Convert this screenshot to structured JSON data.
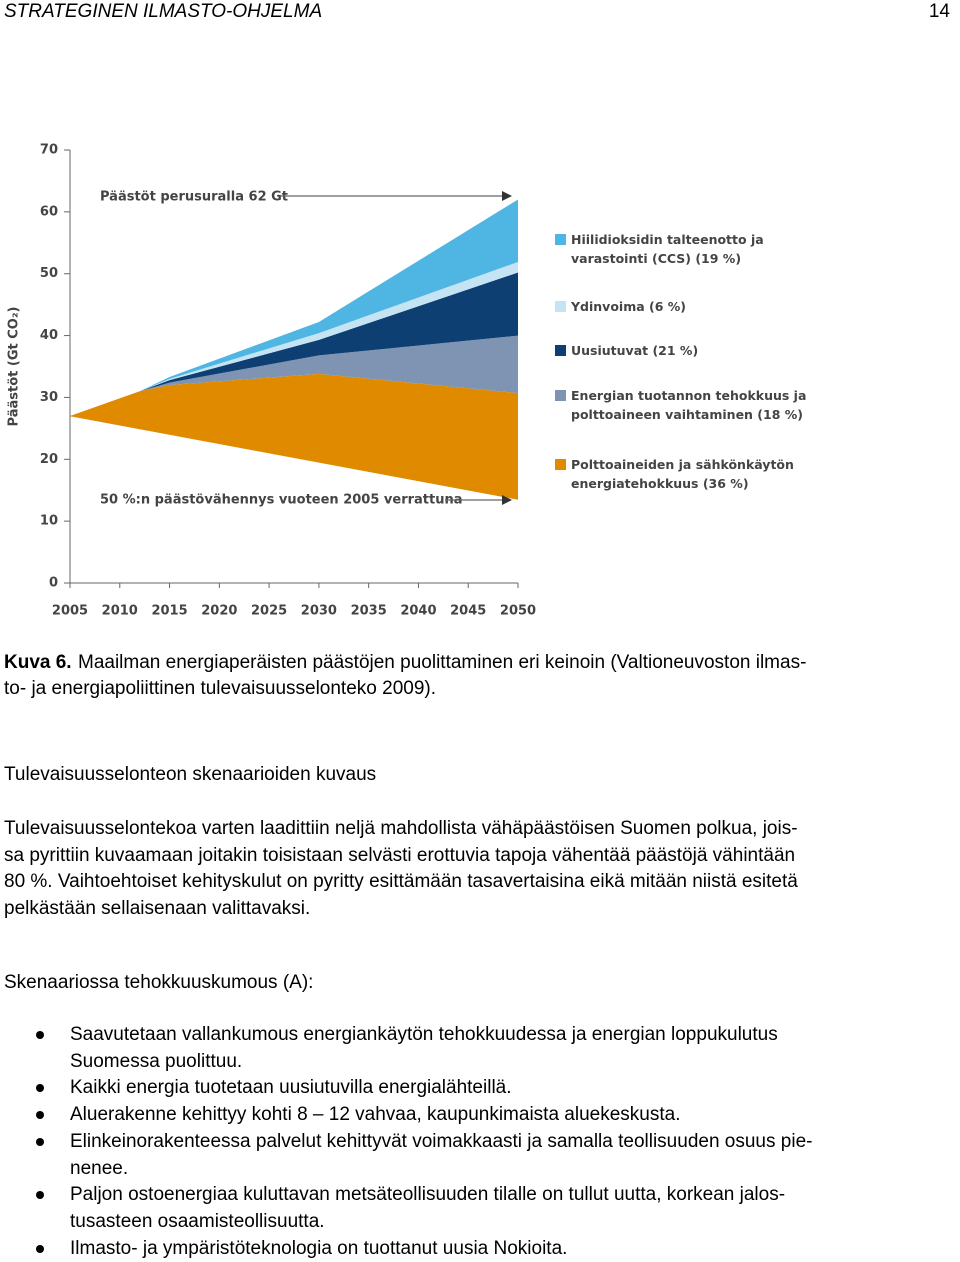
{
  "header": {
    "title": "STRATEGINEN ILMASTO-OHJELMA",
    "page": "14"
  },
  "chart_data": {
    "type": "area",
    "ylabel": "Päästöt (Gt CO₂)",
    "x": [
      2005,
      2012,
      2015,
      2030,
      2050
    ],
    "xlim": [
      2005,
      2050
    ],
    "xticks": [
      2005,
      2010,
      2015,
      2020,
      2025,
      2030,
      2035,
      2040,
      2045,
      2050
    ],
    "ylim": [
      0,
      70
    ],
    "yticks": [
      0,
      10,
      20,
      30,
      40,
      50,
      60,
      70
    ],
    "annotations": [
      "Päästöt perusuralla 62 Gt",
      "50 %:n päästövähennys vuoteen 2005 verrattuna"
    ],
    "series": [
      {
        "name": "50 %:n päästövähennys vuoteen 2005 verrattuna",
        "values": [
          27,
          24.9,
          24,
          19.5,
          13.5
        ]
      },
      {
        "name": "Polttoaineiden ja sähkönkäytön energiatehokkuus (36 %)",
        "color": "#e08a00",
        "values": [
          0,
          6.1,
          8,
          14.3,
          17.2
        ]
      },
      {
        "name": "Energian tuotannon tehokkuus ja polttoaineen vaihtaminen (18 %)",
        "color": "#7f94b3",
        "values": [
          0,
          0,
          0.4,
          3,
          9.3
        ]
      },
      {
        "name": "Uusiutuvat (21 %)",
        "color": "#0d3f73",
        "values": [
          0,
          0,
          0.4,
          2.5,
          10.2
        ]
      },
      {
        "name": "Ydinvoima (6 %)",
        "color": "#c4e3f3",
        "values": [
          0,
          0,
          0.2,
          1.1,
          1.7
        ]
      },
      {
        "name": "Hiilidioksidin talteenotto ja varastointi (CCS) (19 %)",
        "color": "#4fb6e4",
        "values": [
          0,
          0,
          0.3,
          1.8,
          10.1
        ]
      }
    ]
  },
  "caption": {
    "label": "Kuva 6.",
    "lines": [
      "Maailman energiaperäisten päästöjen puolittaminen eri keinoin (Valtioneuvoston ilmas-",
      "to- ja energiapoliittinen tulevaisuusselonteko 2009)."
    ]
  },
  "heading": "Tulevaisuusselonteon skenaarioiden kuvaus",
  "paragraph": [
    "Tulevaisuusselontekoa varten laadittiin neljä mahdollista vähäpäästöisen Suomen polkua, jois-",
    "sa pyrittiin kuvaamaan joitakin toisistaan selvästi erottuvia tapoja vähentää päästöjä vähintään",
    "80 %. Vaihtoehtoiset kehityskulut on pyritty esittämään tasavertaisina eikä mitään niistä esitetä",
    "pelkästään sellaisenaan valittavaksi."
  ],
  "scenario": "Skenaariossa tehokkuuskumous (A):",
  "bullets": [
    [
      "Saavutetaan vallankumous energiankäytön tehokkuudessa ja energian loppukulutus",
      "Suomessa puolittuu."
    ],
    [
      "Kaikki energia tuotetaan uusiutuvilla energialähteillä."
    ],
    [
      "Aluerakenne kehittyy kohti 8 – 12 vahvaa, kaupunkimaista aluekeskusta."
    ],
    [
      "Elinkeinorakenteessa palvelut kehittyvät voimakkaasti ja samalla teollisuuden osuus pie-",
      "nenee."
    ],
    [
      "Paljon ostoenergiaa kuluttavan metsäteollisuuden tilalle on tullut uutta, korkean jalos-",
      "tusasteen osaamisteollisuutta."
    ],
    [
      "Ilmasto- ja ympäristöteknologia on tuottanut uusia Nokioita."
    ]
  ]
}
